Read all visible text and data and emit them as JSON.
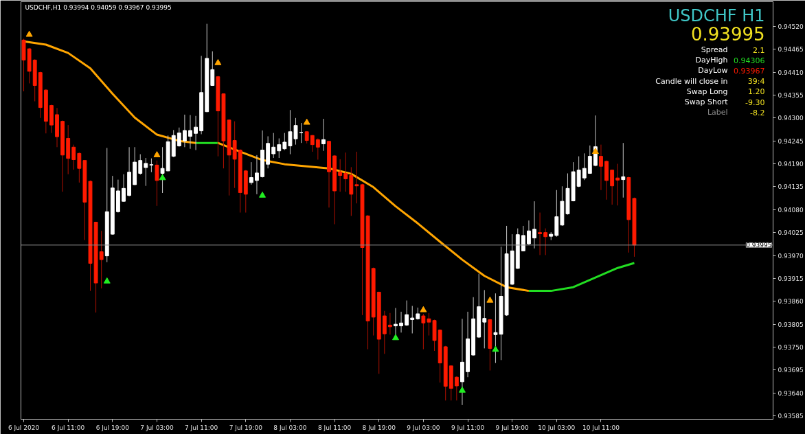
{
  "chart_data": {
    "type": "candlestick",
    "title": "USDCHF,H1  0.93994 0.94059 0.93967 0.93995",
    "annotations": [
      "USDCHF H1",
      "0.93995",
      "Spread",
      "2.1",
      "DayHigh",
      "0.94306",
      "DayLow",
      "0.93967",
      "Candle will close in",
      "39:4",
      "Swap Long",
      "1.20",
      "Swap Short",
      "-9.30",
      "Label",
      "-8.2"
    ],
    "x": [
      "2020-07-06T03:00",
      "2020-07-06T04:00",
      "2020-07-06T05:00",
      "2020-07-06T06:00",
      "2020-07-06T07:00",
      "2020-07-06T08:00",
      "2020-07-06T09:00",
      "2020-07-06T10:00",
      "2020-07-06T11:00",
      "2020-07-06T12:00",
      "2020-07-06T13:00",
      "2020-07-06T14:00",
      "2020-07-06T15:00",
      "2020-07-06T16:00",
      "2020-07-06T17:00",
      "2020-07-06T18:00",
      "2020-07-06T19:00",
      "2020-07-06T20:00",
      "2020-07-06T21:00",
      "2020-07-06T22:00",
      "2020-07-06T23:00",
      "2020-07-07T00:00",
      "2020-07-07T01:00",
      "2020-07-07T02:00",
      "2020-07-07T03:00",
      "2020-07-07T04:00",
      "2020-07-07T05:00",
      "2020-07-07T06:00",
      "2020-07-07T07:00",
      "2020-07-07T08:00",
      "2020-07-07T09:00",
      "2020-07-07T10:00",
      "2020-07-07T11:00",
      "2020-07-07T12:00",
      "2020-07-07T13:00",
      "2020-07-07T14:00",
      "2020-07-07T15:00",
      "2020-07-07T16:00",
      "2020-07-07T17:00",
      "2020-07-07T18:00",
      "2020-07-07T19:00",
      "2020-07-07T20:00",
      "2020-07-07T21:00",
      "2020-07-07T22:00",
      "2020-07-07T23:00",
      "2020-07-08T00:00",
      "2020-07-08T01:00",
      "2020-07-08T02:00",
      "2020-07-08T03:00",
      "2020-07-08T04:00",
      "2020-07-08T05:00",
      "2020-07-08T06:00",
      "2020-07-08T07:00",
      "2020-07-08T08:00",
      "2020-07-08T09:00",
      "2020-07-08T10:00",
      "2020-07-08T11:00",
      "2020-07-08T12:00",
      "2020-07-08T13:00",
      "2020-07-08T14:00",
      "2020-07-08T15:00",
      "2020-07-08T16:00",
      "2020-07-08T17:00",
      "2020-07-08T18:00",
      "2020-07-08T19:00",
      "2020-07-08T20:00",
      "2020-07-08T21:00",
      "2020-07-08T22:00",
      "2020-07-08T23:00",
      "2020-07-09T00:00",
      "2020-07-09T01:00",
      "2020-07-09T02:00",
      "2020-07-09T03:00",
      "2020-07-09T04:00",
      "2020-07-09T05:00",
      "2020-07-09T06:00",
      "2020-07-09T07:00",
      "2020-07-09T08:00",
      "2020-07-09T09:00",
      "2020-07-09T10:00",
      "2020-07-09T11:00",
      "2020-07-09T12:00",
      "2020-07-09T13:00",
      "2020-07-09T14:00",
      "2020-07-09T15:00",
      "2020-07-09T16:00",
      "2020-07-09T17:00",
      "2020-07-09T18:00",
      "2020-07-09T19:00",
      "2020-07-09T20:00",
      "2020-07-09T21:00",
      "2020-07-09T22:00",
      "2020-07-09T23:00",
      "2020-07-10T00:00",
      "2020-07-10T01:00",
      "2020-07-10T02:00",
      "2020-07-10T03:00",
      "2020-07-10T04:00",
      "2020-07-10T05:00",
      "2020-07-10T06:00",
      "2020-07-10T07:00",
      "2020-07-10T08:00",
      "2020-07-10T09:00",
      "2020-07-10T10:00",
      "2020-07-10T11:00",
      "2020-07-10T12:00",
      "2020-07-10T13:00",
      "2020-07-10T14:00",
      "2020-07-10T15:00",
      "2020-07-10T16:00",
      "2020-07-10T17:00"
    ],
    "ohlc": [
      [
        0.94487,
        0.9449,
        0.94364,
        0.94439
      ],
      [
        0.94466,
        0.94468,
        0.94383,
        0.94412
      ],
      [
        0.94439,
        0.94441,
        0.9434,
        0.94378
      ],
      [
        0.94409,
        0.94411,
        0.943,
        0.94325
      ],
      [
        0.94367,
        0.94369,
        0.94263,
        0.94292
      ],
      [
        0.9433,
        0.94332,
        0.94264,
        0.94283
      ],
      [
        0.94308,
        0.94324,
        0.9423,
        0.94255
      ],
      [
        0.94292,
        0.94294,
        0.94123,
        0.94211
      ],
      [
        0.94251,
        0.94283,
        0.94165,
        0.94203
      ],
      [
        0.9423,
        0.94236,
        0.94176,
        0.942
      ],
      [
        0.94215,
        0.94217,
        0.94145,
        0.94179
      ],
      [
        0.94198,
        0.94199,
        0.94007,
        0.94098
      ],
      [
        0.94148,
        0.9415,
        0.93885,
        0.93951
      ],
      [
        0.9405,
        0.94051,
        0.93833,
        0.93904
      ],
      [
        0.93979,
        0.94029,
        0.93891,
        0.9396
      ],
      [
        0.93969,
        0.94228,
        0.93954,
        0.94075
      ],
      [
        0.94021,
        0.94161,
        0.9402,
        0.94132
      ],
      [
        0.94075,
        0.94152,
        0.94073,
        0.94125
      ],
      [
        0.941,
        0.94165,
        0.94099,
        0.94131
      ],
      [
        0.94114,
        0.9423,
        0.94112,
        0.9417
      ],
      [
        0.9414,
        0.9423,
        0.94139,
        0.94194
      ],
      [
        0.94167,
        0.94213,
        0.94164,
        0.94198
      ],
      [
        0.94181,
        0.94204,
        0.94137,
        0.94191
      ],
      [
        0.94187,
        0.94203,
        0.9417,
        0.94188
      ],
      [
        0.94187,
        0.94198,
        0.94089,
        0.9415
      ],
      [
        0.94167,
        0.9423,
        0.9412,
        0.94179
      ],
      [
        0.94173,
        0.94258,
        0.94172,
        0.94243
      ],
      [
        0.94208,
        0.94271,
        0.94206,
        0.94258
      ],
      [
        0.94233,
        0.94277,
        0.94231,
        0.94264
      ],
      [
        0.94245,
        0.94308,
        0.9423,
        0.9427
      ],
      [
        0.94256,
        0.94307,
        0.94226,
        0.9427
      ],
      [
        0.94263,
        0.94305,
        0.94223,
        0.94278
      ],
      [
        0.94269,
        0.94449,
        0.94261,
        0.94361
      ],
      [
        0.94315,
        0.94526,
        0.94314,
        0.94443
      ],
      [
        0.94378,
        0.9446,
        0.94377,
        0.94416
      ],
      [
        0.94399,
        0.94401,
        0.94208,
        0.94317
      ],
      [
        0.94358,
        0.94359,
        0.94179,
        0.94245
      ],
      [
        0.94295,
        0.94297,
        0.94114,
        0.94211
      ],
      [
        0.94246,
        0.94292,
        0.94132,
        0.94201
      ],
      [
        0.94223,
        0.94225,
        0.94073,
        0.94121
      ],
      [
        0.94173,
        0.94175,
        0.94073,
        0.94117
      ],
      [
        0.94145,
        0.94194,
        0.9414,
        0.94157
      ],
      [
        0.9415,
        0.94211,
        0.94117,
        0.94168
      ],
      [
        0.94159,
        0.9427,
        0.94157,
        0.94223
      ],
      [
        0.94189,
        0.94256,
        0.94179,
        0.94239
      ],
      [
        0.94214,
        0.94264,
        0.94204,
        0.9423
      ],
      [
        0.94221,
        0.94251,
        0.94204,
        0.94236
      ],
      [
        0.94226,
        0.94264,
        0.94223,
        0.94242
      ],
      [
        0.94233,
        0.94319,
        0.94213,
        0.94267
      ],
      [
        0.9425,
        0.943,
        0.94236,
        0.94282
      ],
      [
        0.94265,
        0.94288,
        0.9424,
        0.94265
      ],
      [
        0.94267,
        0.94268,
        0.94239,
        0.94246
      ],
      [
        0.94258,
        0.94259,
        0.94219,
        0.94236
      ],
      [
        0.94248,
        0.94251,
        0.942,
        0.9423
      ],
      [
        0.94238,
        0.94298,
        0.94221,
        0.94248
      ],
      [
        0.94244,
        0.94245,
        0.94085,
        0.94171
      ],
      [
        0.94209,
        0.94211,
        0.94045,
        0.94125
      ],
      [
        0.9417,
        0.94201,
        0.94123,
        0.94162
      ],
      [
        0.94167,
        0.94217,
        0.94123,
        0.94154
      ],
      [
        0.94162,
        0.94182,
        0.94065,
        0.94117
      ],
      [
        0.9414,
        0.94219,
        0.94095,
        0.94137
      ],
      [
        0.9414,
        0.94142,
        0.93827,
        0.93989
      ],
      [
        0.94065,
        0.94067,
        0.93745,
        0.93813
      ],
      [
        0.93939,
        0.93941,
        0.93778,
        0.93822
      ],
      [
        0.93882,
        0.93883,
        0.93686,
        0.93769
      ],
      [
        0.93825,
        0.93837,
        0.93734,
        0.93782
      ],
      [
        0.93803,
        0.93832,
        0.9378,
        0.93799
      ],
      [
        0.93801,
        0.93844,
        0.9378,
        0.93805
      ],
      [
        0.93801,
        0.93835,
        0.93785,
        0.93808
      ],
      [
        0.93803,
        0.93862,
        0.93801,
        0.93828
      ],
      [
        0.93816,
        0.93849,
        0.93783,
        0.9382
      ],
      [
        0.93818,
        0.93845,
        0.93816,
        0.9383
      ],
      [
        0.93825,
        0.9383,
        0.93745,
        0.93808
      ],
      [
        0.93818,
        0.93832,
        0.93778,
        0.9381
      ],
      [
        0.93814,
        0.93816,
        0.93741,
        0.93766
      ],
      [
        0.93791,
        0.93793,
        0.93665,
        0.93712
      ],
      [
        0.93751,
        0.93753,
        0.93622,
        0.93656
      ],
      [
        0.93705,
        0.93706,
        0.93622,
        0.93651
      ],
      [
        0.93678,
        0.9368,
        0.93622,
        0.93657
      ],
      [
        0.93667,
        0.93818,
        0.93611,
        0.93714
      ],
      [
        0.93691,
        0.93835,
        0.93678,
        0.9377
      ],
      [
        0.93731,
        0.9387,
        0.9373,
        0.93818
      ],
      [
        0.93774,
        0.93926,
        0.93772,
        0.93847
      ],
      [
        0.9381,
        0.93887,
        0.93747,
        0.93819
      ],
      [
        0.93816,
        0.93818,
        0.93694,
        0.93747
      ],
      [
        0.9378,
        0.93879,
        0.93712,
        0.93785
      ],
      [
        0.93781,
        0.93991,
        0.93719,
        0.93872
      ],
      [
        0.93827,
        0.94041,
        0.93825,
        0.93974
      ],
      [
        0.93901,
        0.94021,
        0.93899,
        0.93981
      ],
      [
        0.93939,
        0.94035,
        0.93938,
        0.9402
      ],
      [
        0.93981,
        0.94041,
        0.9398,
        0.94018
      ],
      [
        0.93998,
        0.94054,
        0.93995,
        0.94029
      ],
      [
        0.94012,
        0.941,
        0.93987,
        0.94033
      ],
      [
        0.94025,
        0.94073,
        0.93971,
        0.94022
      ],
      [
        0.94025,
        0.94035,
        0.93971,
        0.94015
      ],
      [
        0.94016,
        0.94026,
        0.94007,
        0.94021
      ],
      [
        0.94018,
        0.94127,
        0.94015,
        0.94063
      ],
      [
        0.94043,
        0.94136,
        0.94041,
        0.941
      ],
      [
        0.9407,
        0.94167,
        0.94068,
        0.94131
      ],
      [
        0.94101,
        0.94194,
        0.941,
        0.94171
      ],
      [
        0.94136,
        0.94208,
        0.94134,
        0.94175
      ],
      [
        0.94156,
        0.94215,
        0.94151,
        0.94179
      ],
      [
        0.94167,
        0.94234,
        0.94166,
        0.94208
      ],
      [
        0.94186,
        0.94306,
        0.94184,
        0.94231
      ],
      [
        0.94208,
        0.94236,
        0.94127,
        0.94184
      ],
      [
        0.94196,
        0.94198,
        0.94104,
        0.9415
      ],
      [
        0.94175,
        0.94176,
        0.94092,
        0.94137
      ],
      [
        0.94156,
        0.9419,
        0.9409,
        0.94151
      ],
      [
        0.94152,
        0.9424,
        0.94109,
        0.94159
      ],
      [
        0.94157,
        0.94159,
        0.93977,
        0.94056
      ],
      [
        0.94107,
        0.94109,
        0.93967,
        0.93995
      ]
    ],
    "series": [
      {
        "type": "line",
        "color": "#ffa500",
        "x": [
          "2020-07-06T03:00",
          "2020-07-06T07:00",
          "2020-07-06T11:00",
          "2020-07-06T15:00",
          "2020-07-06T19:00",
          "2020-07-06T23:00",
          "2020-07-07T03:00",
          "2020-07-07T07:00",
          "2020-07-07T10:00",
          "2020-07-07T12:00",
          "2020-07-07T14:00",
          "2020-07-07T18:00",
          "2020-07-07T22:00",
          "2020-07-08T02:00",
          "2020-07-08T06:00",
          "2020-07-08T10:00",
          "2020-07-08T14:00",
          "2020-07-08T18:00",
          "2020-07-08T22:00",
          "2020-07-09T02:00",
          "2020-07-09T06:00",
          "2020-07-09T10:00",
          "2020-07-09T14:00",
          "2020-07-09T18:00",
          "2020-07-09T22:00"
        ],
        "values": [
          0.94484,
          0.94476,
          0.94456,
          0.94419,
          0.94358,
          0.94301,
          0.9426,
          0.94245,
          0.9424,
          null,
          0.9424,
          0.94219,
          0.94199,
          0.94189,
          0.94184,
          0.94179,
          0.94166,
          0.94134,
          0.94088,
          0.94047,
          0.94003,
          0.9396,
          0.93921,
          0.93894,
          0.93885
        ]
      },
      {
        "type": "line",
        "color": "#22dd22",
        "x": [
          "2020-07-07T10:00",
          "2020-07-07T14:00",
          "2020-07-08T00:00",
          "2020-07-09T22:00",
          "2020-07-10T02:00",
          "2020-07-10T06:00",
          "2020-07-10T10:00",
          "2020-07-10T14:00",
          "2020-07-10T17:00"
        ],
        "values": [
          0.9424,
          0.9424,
          null,
          0.93885,
          0.93885,
          0.93894,
          0.93917,
          0.9394,
          0.93952
        ]
      },
      {
        "type": "scatter",
        "marker": "triangle",
        "color": "#ffa500",
        "x": [
          "2020-07-06T04:00",
          "2020-07-07T03:00",
          "2020-07-07T14:00",
          "2020-07-08T06:00",
          "2020-07-09T03:00",
          "2020-07-09T15:00",
          "2020-07-10T10:00"
        ],
        "values": [
          0.945,
          0.94211,
          0.94432,
          0.94289,
          0.93839,
          0.93862,
          0.94219
        ]
      },
      {
        "type": "scatter",
        "marker": "triangle",
        "color": "#22ee22",
        "x": [
          "2020-07-06T18:00",
          "2020-07-07T04:00",
          "2020-07-07T22:00",
          "2020-07-08T22:00",
          "2020-07-09T10:00",
          "2020-07-09T16:00"
        ],
        "values": [
          0.93908,
          0.94156,
          0.94114,
          0.93772,
          0.93646,
          0.93744
        ]
      }
    ],
    "ref_lines": [
      {
        "axis": "y",
        "value": 0.93995,
        "label": "0.93995",
        "color": "#8c8c8c"
      }
    ],
    "xlim": [
      "2020-07-06T02:30",
      "2020-07-11T18:00"
    ],
    "xticks": [
      {
        "value": "2020-07-06T03:00",
        "label": "6 Jul 2020"
      },
      {
        "value": "2020-07-06T11:00",
        "label": "6 Jul 11:00"
      },
      {
        "value": "2020-07-06T19:00",
        "label": "6 Jul 19:00"
      },
      {
        "value": "2020-07-07T03:00",
        "label": "7 Jul 03:00"
      },
      {
        "value": "2020-07-07T11:00",
        "label": "7 Jul 11:00"
      },
      {
        "value": "2020-07-07T19:00",
        "label": "7 Jul 19:00"
      },
      {
        "value": "2020-07-08T03:00",
        "label": "8 Jul 03:00"
      },
      {
        "value": "2020-07-08T11:00",
        "label": "8 Jul 11:00"
      },
      {
        "value": "2020-07-08T19:00",
        "label": "8 Jul 19:00"
      },
      {
        "value": "2020-07-09T03:00",
        "label": "9 Jul 03:00"
      },
      {
        "value": "2020-07-09T11:00",
        "label": "9 Jul 11:00"
      },
      {
        "value": "2020-07-09T19:00",
        "label": "9 Jul 19:00"
      },
      {
        "value": "2020-07-10T03:00",
        "label": "10 Jul 03:00"
      },
      {
        "value": "2020-07-10T11:00",
        "label": "10 Jul 11:00"
      }
    ],
    "ylim": [
      0.93577,
      0.94579
    ],
    "yticks": [
      {
        "value": 0.9452,
        "label": "0.94520"
      },
      0.94465,
      {
        "value": 0.9441,
        "label": "0.94410"
      },
      0.94355,
      {
        "value": 0.943,
        "label": "0.94300"
      },
      0.94245,
      {
        "value": 0.9419,
        "label": "0.94190"
      },
      0.94135,
      {
        "value": 0.9408,
        "label": "0.94080"
      },
      0.94025,
      {
        "value": 0.9397,
        "label": "0.93970"
      },
      0.93915,
      {
        "value": 0.9386,
        "label": "0.93860"
      },
      0.93805,
      {
        "value": 0.9375,
        "label": "0.93750"
      },
      0.93695,
      {
        "value": 0.9364,
        "label": "0.93640"
      },
      0.93585
    ]
  }
}
